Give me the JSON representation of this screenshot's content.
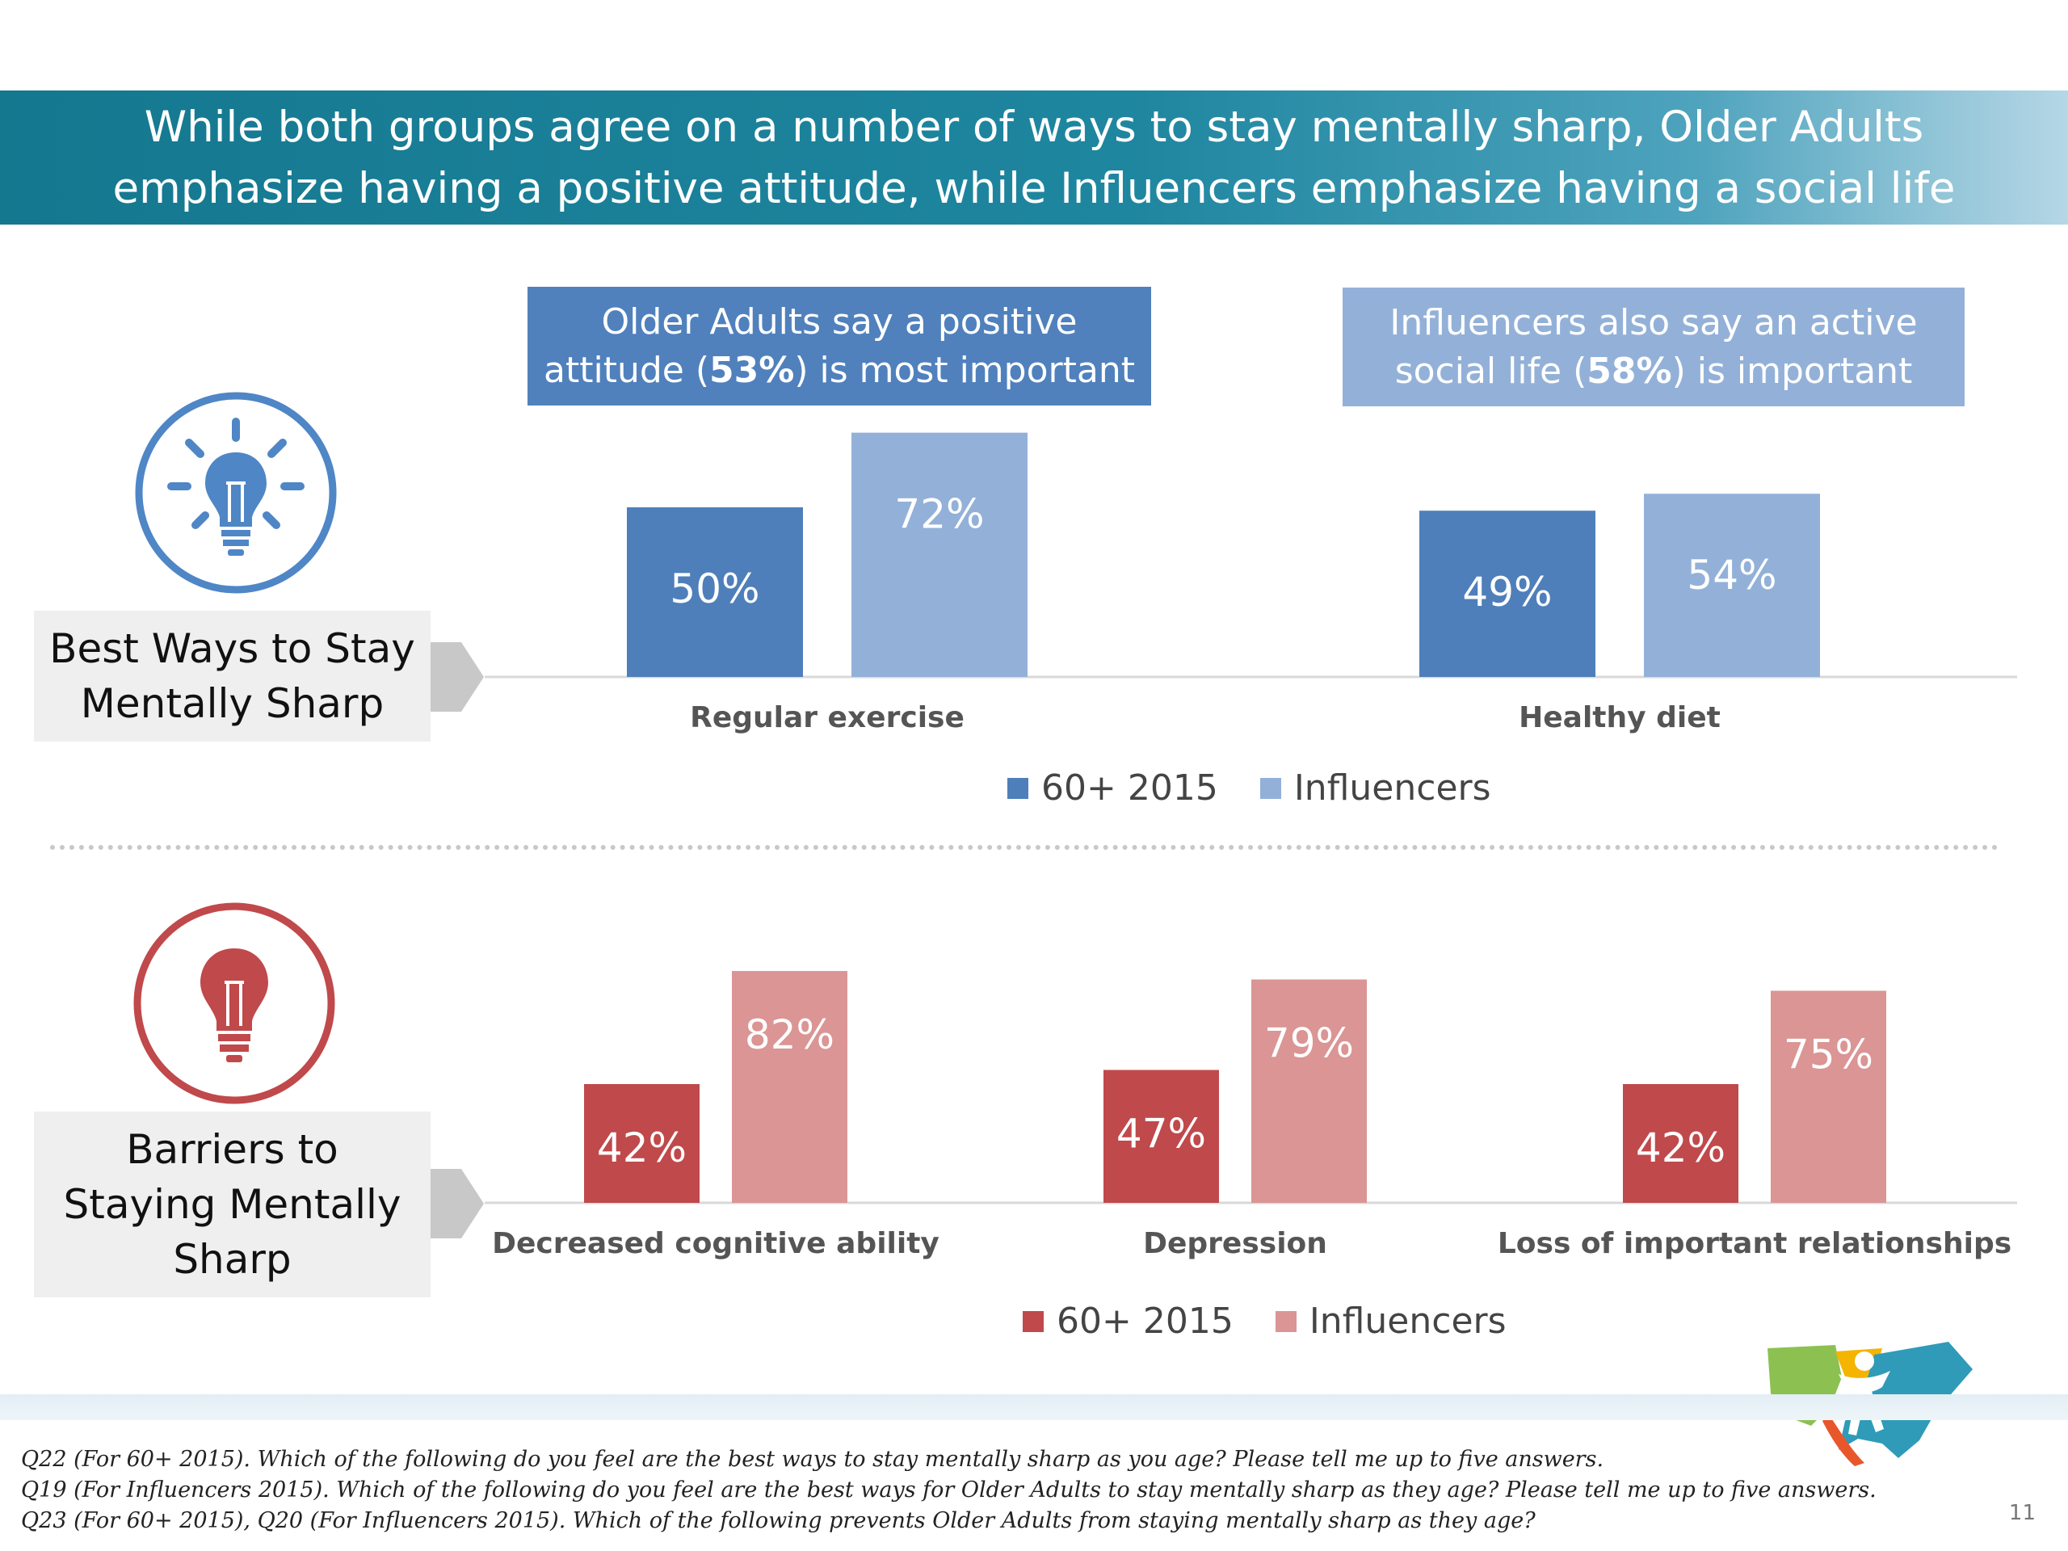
{
  "header": {
    "line1": "While both groups agree on a number of ways to stay mentally sharp, Older Adults",
    "line2": "emphasize having a positive attitude, while Influencers emphasize having a social life"
  },
  "callouts": {
    "left": {
      "line1": "Older Adults say a positive",
      "line2_pre": "attitude (",
      "line2_bold": "53%",
      "line2_post": ") is most important"
    },
    "right": {
      "line1": "Influencers also say an active",
      "line2_pre": "social life (",
      "line2_bold": "58%",
      "line2_post": ") is important"
    }
  },
  "sections": {
    "ways": {
      "label_lines": [
        "Best Ways to Stay",
        "Mentally Sharp"
      ],
      "icon": "lightbulb-rays-icon"
    },
    "barriers": {
      "label_lines": [
        "Barriers to",
        "Staying Mentally",
        "Sharp"
      ],
      "icon": "lightbulb-icon"
    }
  },
  "legend": {
    "series1": "60+ 2015",
    "series2": "Influencers"
  },
  "colors": {
    "blue_dark": "#4f7fba",
    "blue_light": "#93b1d8",
    "red_dark": "#c0494b",
    "red_light": "#da9594",
    "callout_left": "#5081bd",
    "callout_right": "#93b1d8"
  },
  "chart_data": [
    {
      "type": "bar",
      "categories": [
        "Regular exercise",
        "Healthy diet"
      ],
      "series": [
        {
          "name": "60+ 2015",
          "values": [
            50,
            49
          ]
        },
        {
          "name": "Influencers",
          "values": [
            72,
            54
          ]
        }
      ],
      "value_suffix": "%",
      "legend_position": "bottom"
    },
    {
      "type": "bar",
      "categories": [
        "Decreased cognitive ability",
        "Depression",
        "Loss of important relationships"
      ],
      "series": [
        {
          "name": "60+ 2015",
          "values": [
            42,
            47,
            42
          ]
        },
        {
          "name": "Influencers",
          "values": [
            82,
            79,
            75
          ]
        }
      ],
      "value_suffix": "%",
      "legend_position": "bottom"
    }
  ],
  "footnotes": [
    "Q22 (For 60+ 2015). Which of the following do you feel are the best ways to stay mentally sharp as you age? Please tell me up to five answers.",
    "Q19 (For Influencers 2015). Which of the following do you feel are the best ways for Older Adults to stay mentally sharp as they age? Please tell me up to five answers.",
    "Q23 (For 60+ 2015), Q20 (For Influencers 2015). Which of the following prevents Older Adults from staying mentally sharp as they age?"
  ],
  "page_number": "11"
}
